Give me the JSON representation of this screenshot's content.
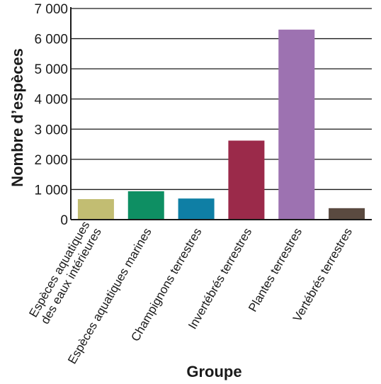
{
  "chart_data": {
    "type": "bar",
    "title": "",
    "xlabel": "Groupe",
    "ylabel": "Nombre d’espèces",
    "ylim": [
      0,
      7000
    ],
    "yticks": [
      0,
      1000,
      2000,
      3000,
      4000,
      5000,
      6000,
      7000
    ],
    "ytick_labels": [
      "0",
      "1 000",
      "2 000",
      "3 000",
      "4 000",
      "5 000",
      "6 000",
      "7 000"
    ],
    "grid": true,
    "categories": [
      [
        "Espèces aquatiques",
        "des eaux intérieures"
      ],
      [
        "Espèces aquatiques marines"
      ],
      [
        "Champignons terrestres"
      ],
      [
        "Invertébrés terrestres"
      ],
      [
        "Plantes terrestres"
      ],
      [
        "Vertébrés terrestres"
      ]
    ],
    "values": [
      680,
      940,
      700,
      2620,
      6300,
      380
    ],
    "colors": [
      "#c2bd72",
      "#0e8f63",
      "#0f7fa5",
      "#9b2a4a",
      "#9d72b1",
      "#5a4a40"
    ]
  }
}
